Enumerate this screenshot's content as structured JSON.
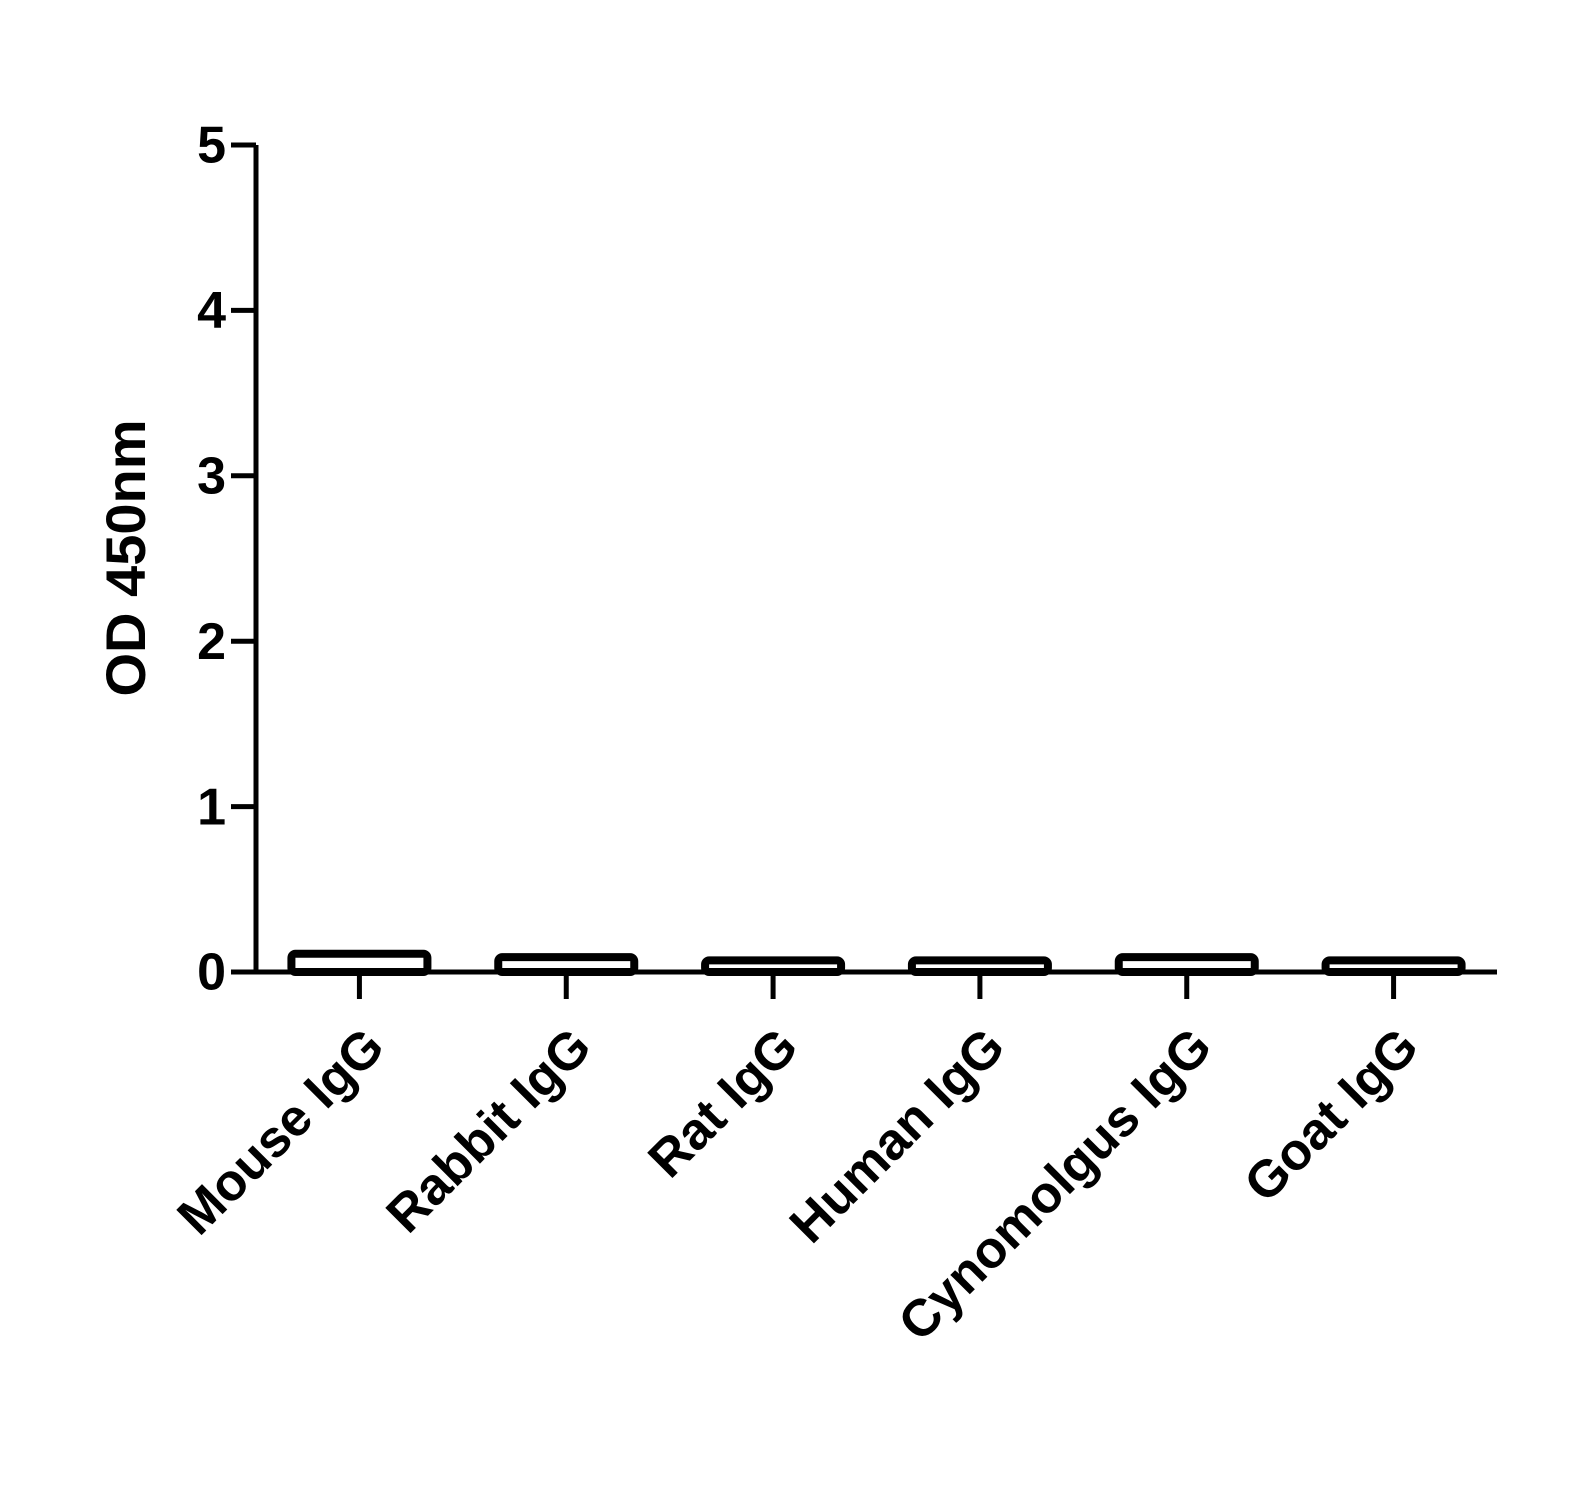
{
  "chart_data": {
    "type": "bar",
    "y_label": "OD 450nm",
    "categories": [
      "Mouse IgG",
      "Rabbit IgG",
      "Rat IgG",
      "Human IgG",
      "Cynomolgus IgG",
      "Goat IgG"
    ],
    "values": [
      0.11,
      0.09,
      0.07,
      0.07,
      0.09,
      0.07
    ],
    "color": "#000000",
    "ylim": [
      0,
      5
    ],
    "yticks": [
      0,
      1,
      2,
      3,
      4,
      5
    ],
    "grid": false
  }
}
